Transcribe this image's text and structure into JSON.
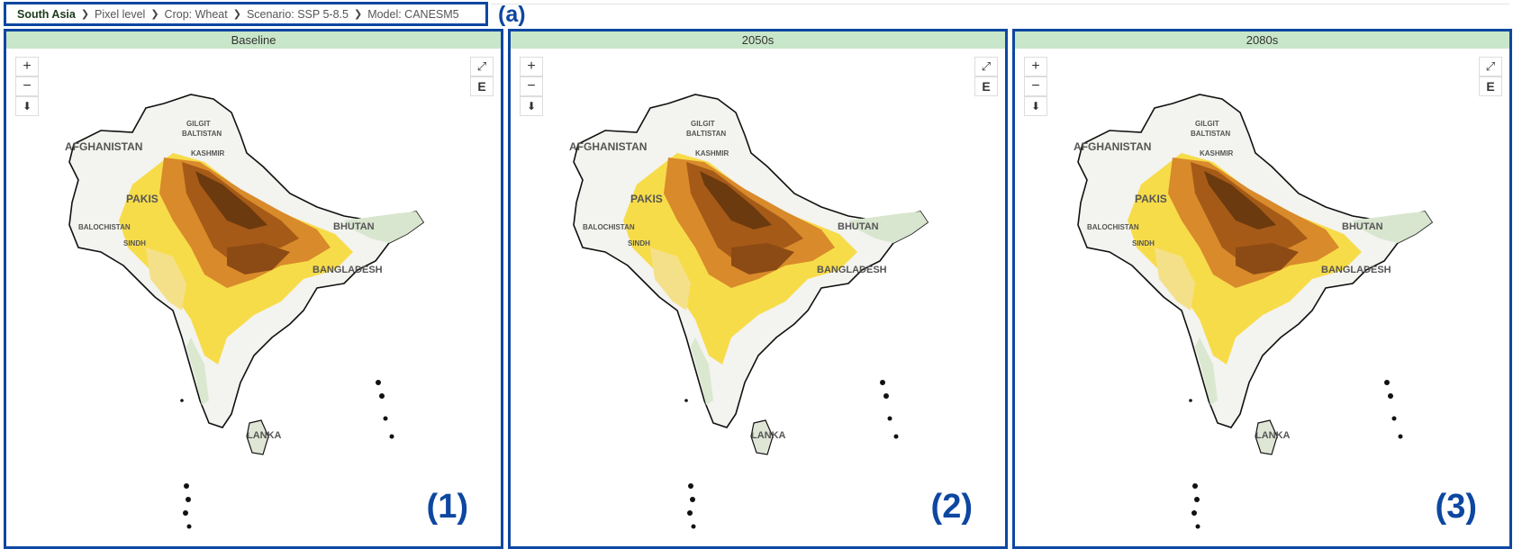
{
  "breadcrumb": {
    "region": "South Asia",
    "level": "Pixel level",
    "crop": "Crop: Wheat",
    "scenario": "Scenario: SSP 5-8.5",
    "model": "Model: CANESM5"
  },
  "annotation_a": "(a)",
  "panels": [
    {
      "title": "Baseline",
      "label": "(1)"
    },
    {
      "title": "2050s",
      "label": "(2)"
    },
    {
      "title": "2080s",
      "label": "(3)"
    }
  ],
  "controls": {
    "zoom_in": "+",
    "zoom_out": "−",
    "download": "⬇",
    "expand": "⤢",
    "export": "E"
  },
  "map_labels": [
    "AFGHANISTAN",
    "PAKIS",
    "GILGIT",
    "BALTISTAN",
    "KASHMIR",
    "BALOCHISTAN",
    "SINDH",
    "BHUTAN",
    "BANGLADESH",
    "LANKA"
  ],
  "colors": {
    "accent_border": "#0d47a1",
    "title_bar": "#c8e6c9"
  }
}
